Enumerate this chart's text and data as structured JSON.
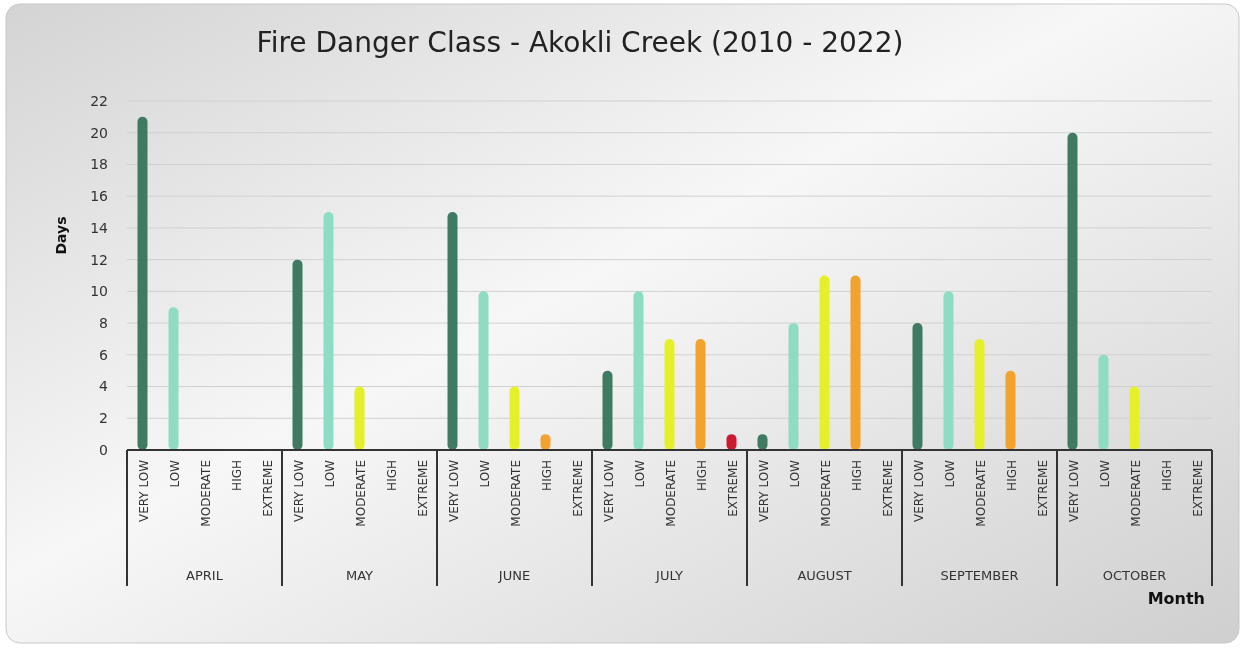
{
  "chart_data": {
    "type": "bar",
    "title": "Fire Danger Class - Akokli Creek (2010 - 2022)",
    "xlabel": "Month",
    "ylabel": "Days",
    "categories": [
      "VERY LOW",
      "LOW",
      "MODERATE",
      "HIGH",
      "EXTREME",
      "VERY LOW",
      "LOW",
      "MODERATE",
      "HIGH",
      "EXTREME",
      "VERY LOW",
      "LOW",
      "MODERATE",
      "HIGH",
      "EXTREME",
      "VERY LOW",
      "LOW",
      "MODERATE",
      "HIGH",
      "EXTREME",
      "VERY LOW",
      "LOW",
      "MODERATE",
      "HIGH",
      "EXTREME",
      "VERY LOW",
      "LOW",
      "MODERATE",
      "HIGH",
      "EXTREME",
      "VERY LOW",
      "LOW",
      "MODERATE",
      "HIGH",
      "EXTREME"
    ],
    "values": [
      21,
      9,
      0,
      0,
      0,
      12,
      15,
      4,
      0,
      0,
      15,
      10,
      4,
      1,
      0,
      5,
      10,
      7,
      7,
      1,
      1,
      8,
      11,
      11,
      0,
      8,
      10,
      7,
      5,
      0,
      20,
      6,
      4,
      0,
      0
    ],
    "colors": [
      "#3f7a62",
      "#8fdcc4",
      "#e6f02a",
      "#f2a22e",
      "#cc1a2e",
      "#3f7a62",
      "#8fdcc4",
      "#e6f02a",
      "#f2a22e",
      "#cc1a2e",
      "#3f7a62",
      "#8fdcc4",
      "#e6f02a",
      "#f2a22e",
      "#cc1a2e",
      "#3f7a62",
      "#8fdcc4",
      "#e6f02a",
      "#f2a22e",
      "#cc1a2e",
      "#3f7a62",
      "#8fdcc4",
      "#e6f02a",
      "#f2a22e",
      "#cc1a2e",
      "#3f7a62",
      "#8fdcc4",
      "#e6f02a",
      "#f2a22e",
      "#cc1a2e",
      "#3f7a62",
      "#8fdcc4",
      "#e6f02a",
      "#f2a22e",
      "#cc1a2e"
    ],
    "annotations": [
      "APRIL",
      "MAY",
      "JUNE",
      "JULY",
      "AUGUST",
      "SEPTEMBER",
      "OCTOBER"
    ],
    "ylim": [
      0,
      22
    ],
    "yticks": [
      0,
      2,
      4,
      6,
      8,
      10,
      12,
      14,
      16,
      18,
      20,
      22
    ],
    "grid": "y"
  }
}
